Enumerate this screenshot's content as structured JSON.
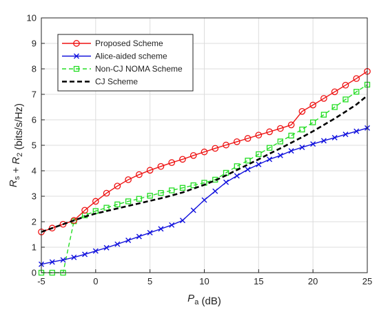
{
  "chart_data": {
    "type": "line",
    "xlabel": "P_a (dB)",
    "ylabel": "R_s + R_2 (bits/s/Hz)",
    "xlim": [
      -5,
      25
    ],
    "ylim": [
      0,
      10
    ],
    "xticks": [
      -5,
      0,
      5,
      10,
      15,
      20,
      25
    ],
    "yticks": [
      0,
      1,
      2,
      3,
      4,
      5,
      6,
      7,
      8,
      9,
      10
    ],
    "grid": true,
    "legend_position": "top-left",
    "series": [
      {
        "name": "Proposed Scheme",
        "color": "#ee1111",
        "marker": "circle",
        "line_style": "solid",
        "x": [
          -5,
          -4,
          -3,
          -2,
          -1,
          0,
          1,
          2,
          3,
          4,
          5,
          6,
          7,
          8,
          9,
          10,
          11,
          12,
          13,
          14,
          15,
          16,
          17,
          18,
          19,
          20,
          21,
          22,
          23,
          24,
          25
        ],
        "y": [
          1.6,
          1.75,
          1.9,
          2.05,
          2.45,
          2.8,
          3.12,
          3.4,
          3.65,
          3.85,
          4.02,
          4.17,
          4.32,
          4.45,
          4.6,
          4.74,
          4.88,
          5.01,
          5.14,
          5.27,
          5.4,
          5.53,
          5.66,
          5.8,
          6.33,
          6.58,
          6.84,
          7.1,
          7.36,
          7.62,
          7.9
        ]
      },
      {
        "name": "Alice-aided scheme",
        "color": "#1111dd",
        "marker": "x",
        "line_style": "solid",
        "x": [
          -5,
          -4,
          -3,
          -2,
          -1,
          0,
          1,
          2,
          3,
          4,
          5,
          6,
          7,
          8,
          9,
          10,
          11,
          12,
          13,
          14,
          15,
          16,
          17,
          18,
          19,
          20,
          21,
          22,
          23,
          24,
          25
        ],
        "y": [
          0.33,
          0.42,
          0.5,
          0.6,
          0.72,
          0.85,
          0.98,
          1.12,
          1.27,
          1.42,
          1.57,
          1.72,
          1.87,
          2.05,
          2.45,
          2.85,
          3.2,
          3.55,
          3.8,
          4.05,
          4.25,
          4.45,
          4.6,
          4.78,
          4.92,
          5.05,
          5.18,
          5.3,
          5.43,
          5.55,
          5.68
        ]
      },
      {
        "name": "Non-CJ NOMA Scheme",
        "color": "#22dd22",
        "marker": "square",
        "line_style": "dashed",
        "x": [
          -5,
          -4,
          -3,
          -2,
          -1,
          0,
          1,
          2,
          3,
          4,
          5,
          6,
          7,
          8,
          9,
          10,
          11,
          12,
          13,
          14,
          15,
          16,
          17,
          18,
          19,
          20,
          21,
          22,
          23,
          24,
          25
        ],
        "y": [
          0,
          0,
          0,
          2.02,
          2.25,
          2.42,
          2.55,
          2.68,
          2.8,
          2.9,
          3.02,
          3.13,
          3.23,
          3.33,
          3.43,
          3.53,
          3.65,
          3.92,
          4.18,
          4.4,
          4.65,
          4.9,
          5.15,
          5.38,
          5.62,
          5.9,
          6.2,
          6.5,
          6.8,
          7.1,
          7.38
        ]
      },
      {
        "name": "CJ Scheme",
        "color": "#000000",
        "marker": "none",
        "line_style": "dashed",
        "x": [
          -5,
          -4,
          -3,
          -2,
          -1,
          0,
          1,
          2,
          3,
          4,
          5,
          6,
          7,
          8,
          9,
          10,
          11,
          12,
          13,
          14,
          15,
          16,
          17,
          18,
          19,
          20,
          21,
          22,
          23,
          24,
          25
        ],
        "y": [
          1.6,
          1.75,
          1.9,
          2.05,
          2.2,
          2.32,
          2.42,
          2.52,
          2.62,
          2.72,
          2.82,
          2.92,
          3.03,
          3.15,
          3.3,
          3.45,
          3.62,
          3.82,
          4.03,
          4.24,
          4.45,
          4.67,
          4.88,
          5.1,
          5.32,
          5.55,
          5.8,
          6.05,
          6.32,
          6.6,
          6.95
        ]
      }
    ]
  }
}
